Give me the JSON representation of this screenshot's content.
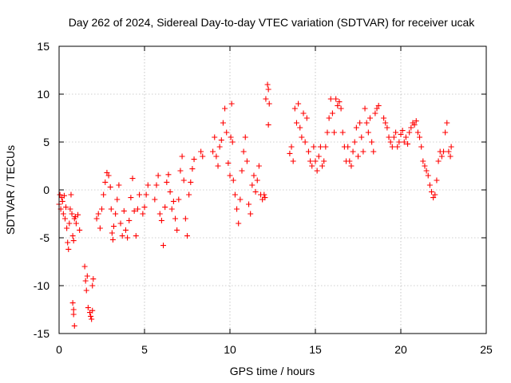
{
  "chart_data": {
    "type": "scatter",
    "title": "Day 262 of 2024, Sidereal Day-to-day VTEC variation (SDTVAR) for receiver ucak",
    "xlabel": "GPS time / hours",
    "ylabel": "SDTVAR / TECUs",
    "xlim": [
      0,
      25
    ],
    "ylim": [
      -15,
      15
    ],
    "xticks": [
      0,
      5,
      10,
      15,
      20,
      25
    ],
    "yticks": [
      -15,
      -10,
      -5,
      0,
      5,
      10,
      15
    ],
    "grid": true,
    "marker": "+",
    "color": "#ff0000",
    "series": [
      {
        "name": "SDTVAR",
        "points": [
          [
            0.0,
            -1.5
          ],
          [
            0.05,
            -0.5
          ],
          [
            0.1,
            -2.0
          ],
          [
            0.15,
            -0.8
          ],
          [
            0.2,
            -1.2
          ],
          [
            0.25,
            -2.5
          ],
          [
            0.3,
            -0.6
          ],
          [
            0.35,
            -3.0
          ],
          [
            0.4,
            -1.8
          ],
          [
            0.45,
            -4.0
          ],
          [
            0.5,
            -5.5
          ],
          [
            0.55,
            -6.2
          ],
          [
            0.6,
            -3.5
          ],
          [
            0.65,
            -2.0
          ],
          [
            0.7,
            -0.5
          ],
          [
            0.75,
            -2.5
          ],
          [
            0.8,
            -4.8
          ],
          [
            0.85,
            -5.3
          ],
          [
            0.9,
            -3.0
          ],
          [
            0.95,
            -2.8
          ],
          [
            1.0,
            -3.5
          ],
          [
            1.1,
            -2.6
          ],
          [
            1.2,
            -4.2
          ],
          [
            0.8,
            -11.8
          ],
          [
            0.85,
            -12.5
          ],
          [
            0.9,
            -14.2
          ],
          [
            0.85,
            -13.0
          ],
          [
            1.5,
            -8.0
          ],
          [
            1.55,
            -9.5
          ],
          [
            1.6,
            -10.5
          ],
          [
            1.65,
            -9.0
          ],
          [
            1.7,
            -12.3
          ],
          [
            1.8,
            -12.8
          ],
          [
            1.85,
            -13.2
          ],
          [
            1.9,
            -13.5
          ],
          [
            1.95,
            -12.6
          ],
          [
            2.0,
            -9.3
          ],
          [
            1.95,
            -10.0
          ],
          [
            2.2,
            -3.0
          ],
          [
            2.3,
            -2.5
          ],
          [
            2.4,
            -4.0
          ],
          [
            2.5,
            -2.0
          ],
          [
            2.6,
            -0.5
          ],
          [
            2.7,
            0.8
          ],
          [
            2.8,
            1.8
          ],
          [
            2.9,
            1.5
          ],
          [
            3.0,
            0.3
          ],
          [
            3.05,
            -2.0
          ],
          [
            3.1,
            -4.5
          ],
          [
            3.15,
            -5.2
          ],
          [
            3.2,
            -3.8
          ],
          [
            3.3,
            -2.5
          ],
          [
            3.4,
            -1.0
          ],
          [
            3.5,
            0.5
          ],
          [
            3.6,
            -3.5
          ],
          [
            3.7,
            -4.8
          ],
          [
            3.8,
            -2.2
          ],
          [
            3.9,
            -4.2
          ],
          [
            4.0,
            -5.0
          ],
          [
            4.1,
            -3.2
          ],
          [
            4.2,
            -0.8
          ],
          [
            4.3,
            1.2
          ],
          [
            4.4,
            -2.2
          ],
          [
            4.5,
            -4.8
          ],
          [
            4.6,
            -2.0
          ],
          [
            4.7,
            -0.5
          ],
          [
            4.9,
            -2.5
          ],
          [
            5.0,
            -1.8
          ],
          [
            5.1,
            -0.5
          ],
          [
            5.2,
            0.5
          ],
          [
            5.6,
            -1.0
          ],
          [
            5.7,
            0.5
          ],
          [
            5.8,
            1.5
          ],
          [
            5.9,
            -2.5
          ],
          [
            6.0,
            -3.2
          ],
          [
            6.1,
            -5.8
          ],
          [
            6.2,
            -1.8
          ],
          [
            6.3,
            0.8
          ],
          [
            6.4,
            1.6
          ],
          [
            6.5,
            -0.2
          ],
          [
            6.6,
            -2.0
          ],
          [
            6.7,
            -1.2
          ],
          [
            6.8,
            -3.0
          ],
          [
            6.9,
            -4.2
          ],
          [
            7.0,
            -1.0
          ],
          [
            7.1,
            2.0
          ],
          [
            7.2,
            3.5
          ],
          [
            7.3,
            1.0
          ],
          [
            7.4,
            -3.0
          ],
          [
            7.5,
            -4.8
          ],
          [
            7.6,
            -0.5
          ],
          [
            7.7,
            0.8
          ],
          [
            7.8,
            2.2
          ],
          [
            7.9,
            3.2
          ],
          [
            8.3,
            4.0
          ],
          [
            8.4,
            3.5
          ],
          [
            9.0,
            4.0
          ],
          [
            9.1,
            5.5
          ],
          [
            9.2,
            3.5
          ],
          [
            9.3,
            2.5
          ],
          [
            9.4,
            4.5
          ],
          [
            9.5,
            5.2
          ],
          [
            9.6,
            7.0
          ],
          [
            9.7,
            8.5
          ],
          [
            9.8,
            6.0
          ],
          [
            9.9,
            2.8
          ],
          [
            10.0,
            1.5
          ],
          [
            10.05,
            5.5
          ],
          [
            10.1,
            9.0
          ],
          [
            10.15,
            5.0
          ],
          [
            10.2,
            1.0
          ],
          [
            10.3,
            -0.5
          ],
          [
            10.4,
            -2.0
          ],
          [
            10.5,
            -3.5
          ],
          [
            10.6,
            -1.0
          ],
          [
            10.7,
            2.0
          ],
          [
            10.8,
            4.0
          ],
          [
            10.9,
            5.5
          ],
          [
            11.0,
            3.0
          ],
          [
            11.1,
            -1.5
          ],
          [
            11.2,
            -2.5
          ],
          [
            11.3,
            0.5
          ],
          [
            11.4,
            1.5
          ],
          [
            11.5,
            -0.2
          ],
          [
            11.6,
            1.0
          ],
          [
            11.7,
            2.5
          ],
          [
            11.8,
            -0.5
          ],
          [
            11.9,
            -1.0
          ],
          [
            12.0,
            -0.5
          ],
          [
            12.05,
            -0.8
          ],
          [
            12.1,
            9.5
          ],
          [
            12.2,
            11.0
          ],
          [
            12.25,
            10.5
          ],
          [
            12.3,
            9.0
          ],
          [
            12.25,
            6.8
          ],
          [
            13.5,
            3.8
          ],
          [
            13.6,
            4.5
          ],
          [
            13.7,
            3.0
          ],
          [
            13.8,
            8.5
          ],
          [
            13.9,
            7.0
          ],
          [
            14.0,
            9.0
          ],
          [
            14.1,
            6.5
          ],
          [
            14.2,
            5.5
          ],
          [
            14.3,
            8.0
          ],
          [
            14.4,
            5.0
          ],
          [
            14.5,
            7.5
          ],
          [
            14.6,
            4.0
          ],
          [
            14.7,
            3.0
          ],
          [
            14.8,
            2.5
          ],
          [
            14.9,
            4.5
          ],
          [
            15.0,
            3.0
          ],
          [
            15.1,
            2.0
          ],
          [
            15.2,
            3.5
          ],
          [
            15.3,
            4.5
          ],
          [
            15.4,
            2.5
          ],
          [
            15.5,
            3.0
          ],
          [
            15.6,
            4.5
          ],
          [
            15.7,
            6.0
          ],
          [
            15.8,
            7.5
          ],
          [
            15.9,
            9.5
          ],
          [
            16.0,
            8.0
          ],
          [
            16.1,
            6.0
          ],
          [
            16.2,
            9.5
          ],
          [
            16.3,
            8.8
          ],
          [
            16.4,
            9.2
          ],
          [
            16.5,
            8.5
          ],
          [
            16.6,
            6.0
          ],
          [
            16.7,
            4.5
          ],
          [
            16.8,
            3.0
          ],
          [
            16.9,
            4.5
          ],
          [
            17.0,
            3.0
          ],
          [
            17.1,
            2.5
          ],
          [
            17.2,
            4.0
          ],
          [
            17.3,
            5.0
          ],
          [
            17.4,
            6.5
          ],
          [
            17.5,
            3.5
          ],
          [
            17.6,
            7.0
          ],
          [
            17.7,
            5.5
          ],
          [
            17.8,
            4.0
          ],
          [
            17.9,
            8.5
          ],
          [
            18.0,
            7.0
          ],
          [
            18.1,
            6.0
          ],
          [
            18.2,
            7.5
          ],
          [
            18.3,
            5.0
          ],
          [
            18.4,
            4.0
          ],
          [
            18.5,
            8.0
          ],
          [
            18.6,
            8.5
          ],
          [
            18.7,
            8.8
          ],
          [
            19.0,
            7.5
          ],
          [
            19.1,
            7.0
          ],
          [
            19.2,
            6.5
          ],
          [
            19.3,
            5.5
          ],
          [
            19.4,
            5.0
          ],
          [
            19.5,
            4.5
          ],
          [
            19.6,
            5.5
          ],
          [
            19.7,
            6.0
          ],
          [
            19.8,
            4.5
          ],
          [
            19.9,
            5.0
          ],
          [
            20.0,
            5.8
          ],
          [
            20.1,
            6.2
          ],
          [
            20.2,
            5.0
          ],
          [
            20.3,
            5.5
          ],
          [
            20.4,
            4.8
          ],
          [
            20.5,
            6.0
          ],
          [
            20.6,
            6.5
          ],
          [
            20.7,
            7.0
          ],
          [
            20.8,
            6.8
          ],
          [
            20.9,
            7.2
          ],
          [
            21.0,
            6.0
          ],
          [
            21.1,
            5.5
          ],
          [
            21.2,
            4.5
          ],
          [
            21.3,
            3.0
          ],
          [
            21.4,
            2.5
          ],
          [
            21.5,
            2.0
          ],
          [
            21.6,
            1.5
          ],
          [
            21.7,
            0.5
          ],
          [
            21.8,
            -0.2
          ],
          [
            21.9,
            -0.8
          ],
          [
            22.0,
            -0.5
          ],
          [
            22.1,
            1.0
          ],
          [
            22.2,
            3.0
          ],
          [
            22.3,
            4.0
          ],
          [
            22.4,
            3.5
          ],
          [
            22.5,
            4.0
          ],
          [
            22.6,
            6.0
          ],
          [
            22.7,
            7.0
          ],
          [
            22.8,
            4.0
          ],
          [
            22.9,
            3.5
          ],
          [
            22.95,
            4.5
          ]
        ]
      }
    ]
  }
}
